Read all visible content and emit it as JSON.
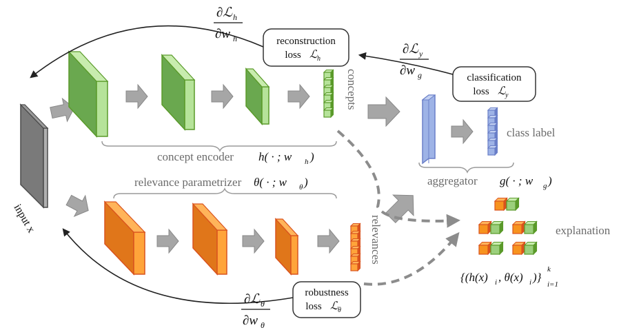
{
  "colors": {
    "green_fill": "#9bcf7c",
    "green_dark": "#6aa84f",
    "green_edge": "#5a9a2a",
    "orange_fill": "#f7931e",
    "orange_dark": "#e0761a",
    "orange_edge": "#d9531e",
    "blue_fill": "#9eb3e6",
    "blue_edge": "#6a7fc8",
    "gray_fill": "#8c8c8c",
    "gray_dark": "#5c5c5c",
    "arrow_gray": "#a6a6a6",
    "text_gray": "#6b6b6b"
  },
  "labels": {
    "input": "input x",
    "concepts": "concepts",
    "relevances": "relevances",
    "class_label": "class label",
    "explanation": "explanation",
    "concept_encoder": "concept encoder",
    "concept_encoder_math": "h( · ; w",
    "concept_encoder_sub": "h",
    "concept_encoder_close": ")",
    "relevance_param": "relevance parametrizer",
    "relevance_param_math": "θ( · ; w",
    "relevance_param_sub": "θ",
    "relevance_param_close": ")",
    "aggregator": "aggregator",
    "aggregator_math": "g( · ; w",
    "aggregator_sub": "g",
    "aggregator_close": ")",
    "explanation_set": "{(h(x)",
    "explanation_set_i1": "i",
    "explanation_set_mid": ", θ(x)",
    "explanation_set_i2": "i",
    "explanation_set_close": ")}",
    "explanation_sup": "k",
    "explanation_sub": "i=1"
  },
  "losses": {
    "reconstruction": {
      "line1": "reconstruction",
      "line2": "loss",
      "symbol": "ℒ",
      "sub": "h"
    },
    "classification": {
      "line1": "classification",
      "line2": "loss",
      "symbol": "ℒ",
      "sub": "y"
    },
    "robustness": {
      "line1": "robustness",
      "line2": "loss",
      "symbol": "ℒ",
      "sub": "θ"
    }
  },
  "gradients": {
    "h": {
      "num": "∂ℒ",
      "num_sub": "h",
      "den": "∂w",
      "den_sub": "h"
    },
    "y": {
      "num": "∂ℒ",
      "num_sub": "y",
      "den": "∂w",
      "den_sub": "g"
    },
    "theta": {
      "num": "∂ℒ",
      "num_sub": "θ",
      "den": "∂w",
      "den_sub": "θ"
    }
  }
}
